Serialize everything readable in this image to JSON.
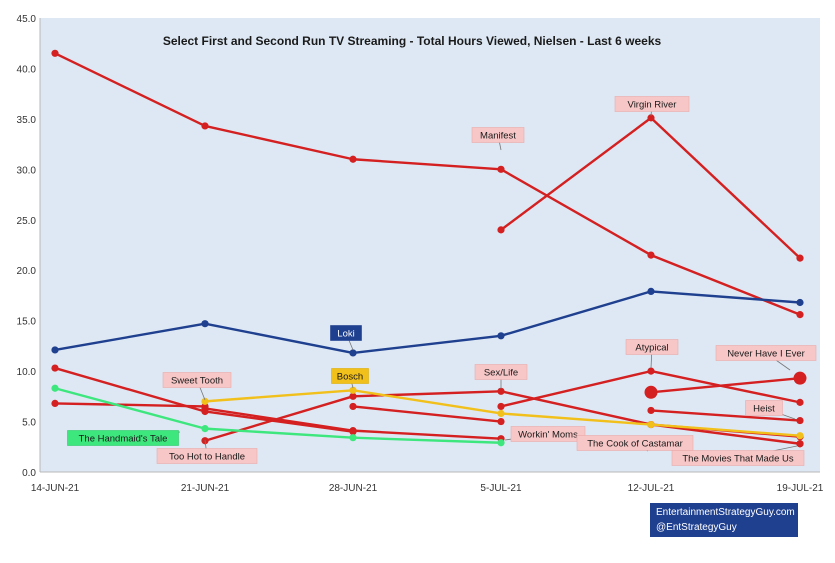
{
  "chart_data": {
    "type": "line",
    "title": "Select First and Second Run TV Streaming - Total Hours Viewed, Nielsen - Last 6 weeks",
    "xlabel": "",
    "ylabel": "",
    "categories": [
      "14-JUN-21",
      "21-JUN-21",
      "28-JUN-21",
      "5-JUL-21",
      "12-JUL-21",
      "19-JUL-21"
    ],
    "y_ticks": [
      "0.0",
      "5.0",
      "10.0",
      "15.0",
      "20.0",
      "25.0",
      "30.0",
      "35.0",
      "40.0",
      "45.0"
    ],
    "ylim": [
      0,
      45
    ],
    "grid": false,
    "background_color": "#dde8f4",
    "series": [
      {
        "name": "Manifest",
        "color": "#d42020",
        "values": [
          41.5,
          34.3,
          31.0,
          30.0,
          21.5,
          15.6
        ],
        "label_at": 3
      },
      {
        "name": "Virgin River",
        "color": "#d42020",
        "values": [
          null,
          null,
          null,
          24.0,
          35.1,
          21.2
        ],
        "label_at": 4
      },
      {
        "name": "Loki",
        "color": "#1f3f8f",
        "values": [
          12.1,
          14.7,
          11.8,
          13.5,
          17.9,
          16.8
        ],
        "label_at": 2
      },
      {
        "name": "Bosch",
        "color": "#f2c01b",
        "values": [
          null,
          7.0,
          8.1,
          5.8,
          4.7,
          3.6
        ],
        "label_at": 2
      },
      {
        "name": "Sweet Tooth",
        "color": "#d42020",
        "values": [
          null,
          6.3,
          4.1,
          3.3,
          null,
          null
        ],
        "label_at": 1
      },
      {
        "name": "The Handmaid's Tale",
        "color": "#3ee67e",
        "values": [
          8.3,
          4.3,
          3.4,
          2.9,
          null,
          null
        ],
        "label_at": 0
      },
      {
        "name": "Too Hot to Handle",
        "color": "#d42020",
        "values": [
          10.3,
          6.0,
          4.0,
          null,
          null,
          null
        ],
        "label_at": 1
      },
      {
        "name": "Workin' Moms",
        "color": "#d42020",
        "values": [
          6.8,
          6.5,
          null,
          null,
          null,
          null
        ],
        "label_at": 3
      },
      {
        "name": "Sex/Life",
        "color": "#d42020",
        "values": [
          null,
          3.1,
          7.5,
          8.0,
          4.7,
          2.8
        ],
        "label_at": 3
      },
      {
        "name": "Atypical",
        "color": "#d42020",
        "values": [
          null,
          null,
          6.5,
          5.0,
          null,
          null
        ],
        "label_at": 4
      },
      {
        "name": "Atypical (2)",
        "color": "#d42020",
        "values": [
          null,
          null,
          null,
          6.5,
          10.0,
          6.9
        ],
        "label_at": null
      },
      {
        "name": "Never Have I Ever",
        "color": "#d42020",
        "values": [
          null,
          null,
          null,
          null,
          7.9,
          9.3
        ],
        "label_at": 5
      },
      {
        "name": "Heist",
        "color": "#d42020",
        "values": [
          null,
          null,
          null,
          null,
          6.1,
          5.1
        ],
        "label_at": 5
      },
      {
        "name": "The Cook of Castamar",
        "color": "#d42020",
        "values": [
          null,
          null,
          null,
          null,
          4.7,
          3.5
        ],
        "label_at": 4
      },
      {
        "name": "The Movies That Made Us",
        "color": "#d42020",
        "values": [
          null,
          null,
          null,
          null,
          null,
          2.8
        ],
        "label_at": 5
      }
    ],
    "labels": [
      {
        "text": "Manifest",
        "style": "pink"
      },
      {
        "text": "Virgin River",
        "style": "pink"
      },
      {
        "text": "Loki",
        "style": "navy"
      },
      {
        "text": "Bosch",
        "style": "gold"
      },
      {
        "text": "Sweet Tooth",
        "style": "pink"
      },
      {
        "text": "The Handmaid's Tale",
        "style": "green"
      },
      {
        "text": "Too Hot to Handle",
        "style": "pink"
      },
      {
        "text": "Workin' Moms",
        "style": "pink"
      },
      {
        "text": "Sex/Life",
        "style": "pink"
      },
      {
        "text": "Atypical",
        "style": "pink"
      },
      {
        "text": "Never Have I Ever",
        "style": "pink"
      },
      {
        "text": "Heist",
        "style": "pink"
      },
      {
        "text": "The Cook of Castamar",
        "style": "pink"
      },
      {
        "text": "The Movies That Made Us",
        "style": "pink"
      }
    ]
  },
  "credit": {
    "line1": "EntertainmentStrategyGuy.com",
    "line2": "@EntStrategyGuy"
  }
}
